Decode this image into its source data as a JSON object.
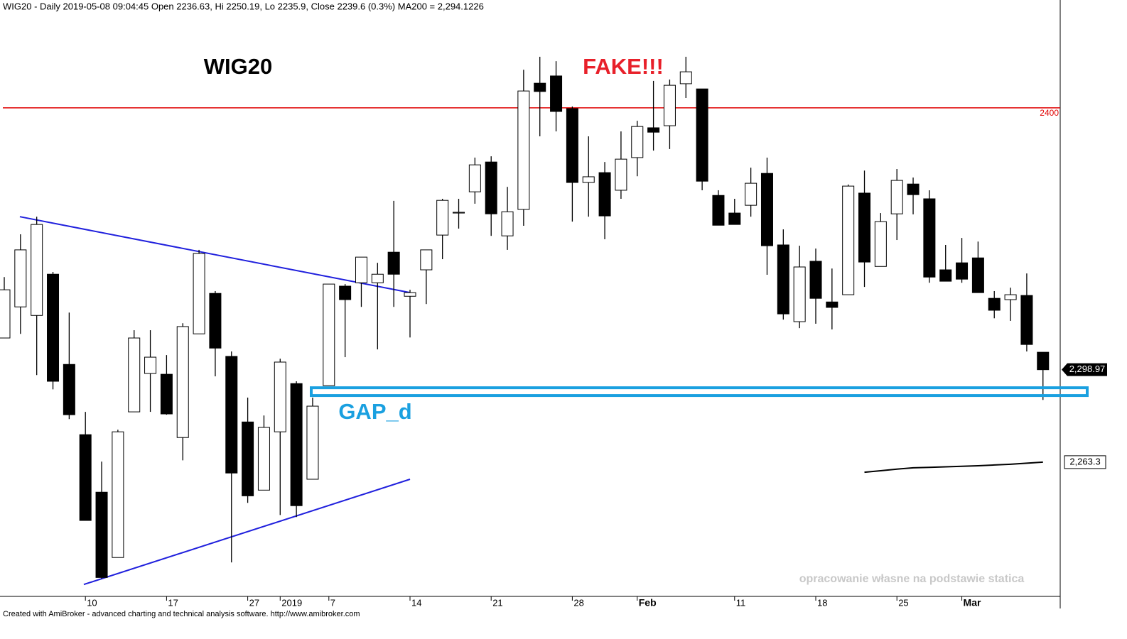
{
  "chart_data": {
    "type": "candlestick",
    "header": "WIG20 - Daily 2019-05-08 09:04:45 Open 2236.63, Hi 2250.19, Lo 2235.9, Close 2239.6 (0.3%) MA200 = 2,294.1226",
    "title": "WIG20",
    "annotation": "FAKE!!!",
    "watermark": "opracowanie własne na podstawie statica",
    "footer": "Created with AmiBroker - advanced charting and technical analysis software. http://www.amibroker.com",
    "categories": [
      null,
      null,
      null,
      null,
      null,
      "10",
      null,
      null,
      null,
      null,
      "17",
      null,
      null,
      null,
      null,
      "27",
      null,
      "2019",
      null,
      null,
      "7",
      null,
      null,
      null,
      null,
      "14",
      null,
      null,
      null,
      null,
      "21",
      null,
      null,
      null,
      null,
      "28",
      null,
      null,
      null,
      "Feb",
      null,
      null,
      null,
      null,
      null,
      "11",
      null,
      null,
      null,
      null,
      "18",
      null,
      null,
      null,
      null,
      "25",
      null,
      null,
      null,
      "Mar",
      null,
      null,
      null,
      null,
      null
    ],
    "open": [
      2311.2,
      2323.2,
      2319.9,
      2335.8,
      2301.0,
      2273.9,
      2251.7,
      2226.5,
      2282.7,
      2297.5,
      2297.2,
      2272.8,
      2312.8,
      2328.4,
      2304.1,
      2278.8,
      2252.5,
      2275.0,
      2293.6,
      2256.7,
      2292.8,
      2331.2,
      2332.5,
      2332.5,
      2344.3,
      2327.3,
      2337.5,
      2350.9,
      2359.4,
      2367.6,
      2379.1,
      2350.6,
      2360.8,
      2409.5,
      2412.3,
      2399.7,
      2371.2,
      2375.0,
      2368.2,
      2380.8,
      2392.3,
      2393.1,
      2409.3,
      2407.3,
      2366.2,
      2359.4,
      2362.4,
      2374.7,
      2347.1,
      2317.5,
      2340.8,
      2325.1,
      2327.9,
      2367.1,
      2338.8,
      2359.1,
      2370.6,
      2364.9,
      2337.5,
      2340.2,
      2342.1,
      2326.5,
      2326.0,
      2327.6,
      2305.7
    ],
    "high": [
      2334.7,
      2351.2,
      2358.0,
      2336.7,
      2321.0,
      2282.7,
      2263.5,
      2275.8,
      2314.2,
      2314.2,
      2304.6,
      2316.9,
      2345.2,
      2329.3,
      2306.0,
      2288.2,
      2281.3,
      2303.2,
      2294.5,
      2288.2,
      2332.0,
      2332.0,
      2342.4,
      2340.2,
      2364.1,
      2329.8,
      2345.2,
      2364.9,
      2364.9,
      2380.8,
      2381.3,
      2369.5,
      2414.7,
      2419.7,
      2418.0,
      2400.5,
      2389.0,
      2379.1,
      2390.9,
      2395.0,
      2410.4,
      2410.9,
      2419.7,
      2407.3,
      2368.2,
      2364.9,
      2376.9,
      2380.8,
      2353.1,
      2346.8,
      2345.7,
      2338.0,
      2370.4,
      2375.8,
      2359.4,
      2376.4,
      2373.1,
      2368.2,
      2347.1,
      2349.8,
      2348.4,
      2329.3,
      2330.6,
      2336.1,
      2305.7
    ],
    "low": [
      2311.2,
      2312.8,
      2296.9,
      2291.4,
      2279.9,
      2240.8,
      2218.3,
      2226.5,
      2282.7,
      2282.7,
      2281.6,
      2264.0,
      2312.8,
      2296.4,
      2224.6,
      2247.6,
      2252.5,
      2242.9,
      2242.1,
      2256.7,
      2292.8,
      2303.8,
      2323.2,
      2306.8,
      2323.2,
      2311.4,
      2324.3,
      2341.6,
      2353.4,
      2363.0,
      2350.6,
      2345.2,
      2354.5,
      2389.0,
      2390.9,
      2356.1,
      2358.0,
      2349.3,
      2364.9,
      2373.6,
      2383.5,
      2384.1,
      2403.8,
      2368.2,
      2354.7,
      2355.0,
      2358.0,
      2335.6,
      2318.3,
      2315.0,
      2316.7,
      2314.5,
      2327.9,
      2330.9,
      2338.8,
      2349.0,
      2358.9,
      2332.5,
      2333.1,
      2332.5,
      2328.7,
      2318.8,
      2317.8,
      2306.0,
      2287.3
    ],
    "close": [
      2329.8,
      2345.2,
      2355.0,
      2294.5,
      2281.6,
      2240.8,
      2218.8,
      2275.0,
      2311.2,
      2303.8,
      2281.9,
      2315.6,
      2343.8,
      2307.3,
      2259.1,
      2250.3,
      2276.7,
      2301.9,
      2246.5,
      2284.9,
      2332.0,
      2326.0,
      2342.4,
      2335.8,
      2335.8,
      2328.7,
      2345.2,
      2364.3,
      2359.7,
      2378.0,
      2359.1,
      2359.9,
      2406.5,
      2406.3,
      2398.6,
      2371.2,
      2373.4,
      2358.3,
      2380.2,
      2392.8,
      2390.6,
      2408.7,
      2413.9,
      2371.7,
      2354.7,
      2355.0,
      2370.9,
      2346.8,
      2320.5,
      2338.6,
      2326.5,
      2323.0,
      2369.8,
      2340.5,
      2356.1,
      2372.0,
      2366.5,
      2334.7,
      2333.1,
      2333.9,
      2328.7,
      2321.9,
      2327.9,
      2308.7,
      2298.97
    ],
    "last_close_label": "2,298.97",
    "up_color": "#ffffff",
    "down_color": "#000000",
    "ylim": [
      2211.5,
      2441.6
    ],
    "yticks": [
      2400
    ],
    "resistance_color": "#e00000",
    "ma200": {
      "color": "#000000",
      "value_label": "2,263.3",
      "values": [
        null,
        null,
        null,
        null,
        null,
        null,
        null,
        null,
        null,
        null,
        null,
        null,
        null,
        null,
        null,
        null,
        null,
        null,
        null,
        null,
        null,
        null,
        null,
        null,
        null,
        null,
        null,
        null,
        null,
        null,
        null,
        null,
        null,
        null,
        null,
        null,
        null,
        null,
        null,
        null,
        null,
        null,
        null,
        null,
        null,
        null,
        null,
        null,
        null,
        null,
        null,
        null,
        null,
        2259.4,
        2260.0,
        2260.6,
        2261.1,
        2261.3,
        2261.5,
        2261.7,
        2261.9,
        2262.2,
        2262.5,
        2262.9,
        2263.3
      ]
    },
    "trendlines": {
      "color": "#2020dd",
      "lines": [
        {
          "x": [
            0.96,
            25
          ],
          "y": [
            2358.0,
            2328.7
          ]
        },
        {
          "x": [
            4.9,
            25
          ],
          "y": [
            2216.1,
            2256.7
          ]
        }
      ]
    },
    "gap": {
      "label": "GAP_d",
      "low": 2289.0,
      "high": 2292.0,
      "color": "#1aa0e0"
    }
  }
}
